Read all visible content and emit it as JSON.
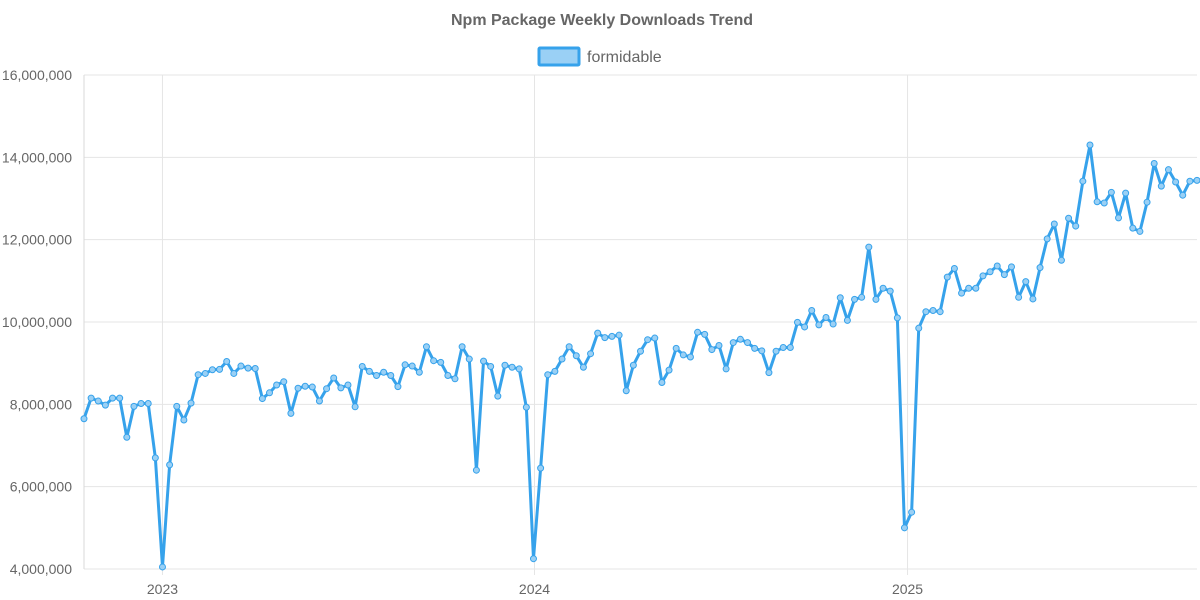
{
  "chart_data": {
    "type": "line",
    "title": "Npm Package Weekly Downloads Trend",
    "xlabel": "",
    "ylabel": "",
    "x_tick_labels": [
      "2023",
      "2024",
      "2025"
    ],
    "x_ticks": [
      "2023-01-01",
      "2024-01-01",
      "2025-01-01"
    ],
    "y_ticks": [
      4000000,
      6000000,
      8000000,
      10000000,
      12000000,
      14000000,
      16000000
    ],
    "y_tick_labels": [
      "4,000,000",
      "6,000,000",
      "8,000,000",
      "10,000,000",
      "12,000,000",
      "14,000,000",
      "16,000,000"
    ],
    "ylim": [
      4000000,
      16000000
    ],
    "xlim": [
      "2022-10-16",
      "2025-09-28"
    ],
    "grid": true,
    "legend_position": "top",
    "series_color": "#36a2eb",
    "series_fill": "#9ad0f5",
    "series": [
      {
        "name": "formidable",
        "points": [
          [
            "2022-10-16",
            7650000
          ],
          [
            "2022-10-23",
            8150000
          ],
          [
            "2022-10-30",
            8080000
          ],
          [
            "2022-11-06",
            7980000
          ],
          [
            "2022-11-13",
            8150000
          ],
          [
            "2022-11-20",
            8150000
          ],
          [
            "2022-11-27",
            7200000
          ],
          [
            "2022-12-04",
            7950000
          ],
          [
            "2022-12-11",
            8020000
          ],
          [
            "2022-12-18",
            8020000
          ],
          [
            "2022-12-25",
            6700000
          ],
          [
            "2023-01-01",
            4050000
          ],
          [
            "2023-01-08",
            6530000
          ],
          [
            "2023-01-15",
            7950000
          ],
          [
            "2023-01-22",
            7620000
          ],
          [
            "2023-01-29",
            8030000
          ],
          [
            "2023-02-05",
            8720000
          ],
          [
            "2023-02-12",
            8750000
          ],
          [
            "2023-02-19",
            8840000
          ],
          [
            "2023-02-26",
            8850000
          ],
          [
            "2023-03-05",
            9040000
          ],
          [
            "2023-03-12",
            8750000
          ],
          [
            "2023-03-19",
            8930000
          ],
          [
            "2023-03-26",
            8880000
          ],
          [
            "2023-04-02",
            8870000
          ],
          [
            "2023-04-09",
            8140000
          ],
          [
            "2023-04-16",
            8280000
          ],
          [
            "2023-04-23",
            8470000
          ],
          [
            "2023-04-30",
            8550000
          ],
          [
            "2023-05-07",
            7780000
          ],
          [
            "2023-05-14",
            8390000
          ],
          [
            "2023-05-21",
            8440000
          ],
          [
            "2023-05-28",
            8420000
          ],
          [
            "2023-06-04",
            8080000
          ],
          [
            "2023-06-11",
            8380000
          ],
          [
            "2023-06-18",
            8640000
          ],
          [
            "2023-06-25",
            8400000
          ],
          [
            "2023-07-02",
            8470000
          ],
          [
            "2023-07-09",
            7940000
          ],
          [
            "2023-07-16",
            8920000
          ],
          [
            "2023-07-23",
            8800000
          ],
          [
            "2023-07-30",
            8700000
          ],
          [
            "2023-08-06",
            8780000
          ],
          [
            "2023-08-13",
            8700000
          ],
          [
            "2023-08-20",
            8430000
          ],
          [
            "2023-08-27",
            8960000
          ],
          [
            "2023-09-03",
            8930000
          ],
          [
            "2023-09-10",
            8780000
          ],
          [
            "2023-09-17",
            9400000
          ],
          [
            "2023-09-24",
            9060000
          ],
          [
            "2023-10-01",
            9020000
          ],
          [
            "2023-10-08",
            8700000
          ],
          [
            "2023-10-15",
            8620000
          ],
          [
            "2023-10-22",
            9400000
          ],
          [
            "2023-10-29",
            9100000
          ],
          [
            "2023-11-05",
            6400000
          ],
          [
            "2023-11-12",
            9050000
          ],
          [
            "2023-11-19",
            8920000
          ],
          [
            "2023-11-26",
            8200000
          ],
          [
            "2023-12-03",
            8950000
          ],
          [
            "2023-12-10",
            8900000
          ],
          [
            "2023-12-17",
            8860000
          ],
          [
            "2023-12-24",
            7930000
          ],
          [
            "2023-12-31",
            4250000
          ],
          [
            "2024-01-07",
            6450000
          ],
          [
            "2024-01-14",
            8720000
          ],
          [
            "2024-01-21",
            8800000
          ],
          [
            "2024-01-28",
            9100000
          ],
          [
            "2024-02-04",
            9400000
          ],
          [
            "2024-02-11",
            9180000
          ],
          [
            "2024-02-18",
            8900000
          ],
          [
            "2024-02-25",
            9230000
          ],
          [
            "2024-03-03",
            9730000
          ],
          [
            "2024-03-10",
            9620000
          ],
          [
            "2024-03-17",
            9650000
          ],
          [
            "2024-03-24",
            9680000
          ],
          [
            "2024-03-31",
            8330000
          ],
          [
            "2024-04-07",
            8950000
          ],
          [
            "2024-04-14",
            9290000
          ],
          [
            "2024-04-21",
            9570000
          ],
          [
            "2024-04-28",
            9610000
          ],
          [
            "2024-05-05",
            8530000
          ],
          [
            "2024-05-12",
            8830000
          ],
          [
            "2024-05-19",
            9360000
          ],
          [
            "2024-05-26",
            9200000
          ],
          [
            "2024-06-02",
            9150000
          ],
          [
            "2024-06-09",
            9750000
          ],
          [
            "2024-06-16",
            9700000
          ],
          [
            "2024-06-23",
            9330000
          ],
          [
            "2024-06-30",
            9430000
          ],
          [
            "2024-07-07",
            8860000
          ],
          [
            "2024-07-14",
            9500000
          ],
          [
            "2024-07-21",
            9580000
          ],
          [
            "2024-07-28",
            9500000
          ],
          [
            "2024-08-04",
            9360000
          ],
          [
            "2024-08-11",
            9300000
          ],
          [
            "2024-08-18",
            8770000
          ],
          [
            "2024-08-25",
            9290000
          ],
          [
            "2024-09-01",
            9380000
          ],
          [
            "2024-09-08",
            9380000
          ],
          [
            "2024-09-15",
            9990000
          ],
          [
            "2024-09-22",
            9880000
          ],
          [
            "2024-09-29",
            10280000
          ],
          [
            "2024-10-06",
            9930000
          ],
          [
            "2024-10-13",
            10110000
          ],
          [
            "2024-10-20",
            9950000
          ],
          [
            "2024-10-27",
            10590000
          ],
          [
            "2024-11-03",
            10040000
          ],
          [
            "2024-11-10",
            10550000
          ],
          [
            "2024-11-17",
            10600000
          ],
          [
            "2024-11-24",
            11820000
          ],
          [
            "2024-12-01",
            10550000
          ],
          [
            "2024-12-08",
            10820000
          ],
          [
            "2024-12-15",
            10750000
          ],
          [
            "2024-12-22",
            10100000
          ],
          [
            "2024-12-29",
            5000000
          ],
          [
            "2025-01-05",
            5380000
          ],
          [
            "2025-01-12",
            9850000
          ],
          [
            "2025-01-19",
            10250000
          ],
          [
            "2025-01-26",
            10280000
          ],
          [
            "2025-02-02",
            10250000
          ],
          [
            "2025-02-09",
            11090000
          ],
          [
            "2025-02-16",
            11300000
          ],
          [
            "2025-02-23",
            10700000
          ],
          [
            "2025-03-02",
            10820000
          ],
          [
            "2025-03-09",
            10820000
          ],
          [
            "2025-03-16",
            11120000
          ],
          [
            "2025-03-23",
            11220000
          ],
          [
            "2025-03-30",
            11360000
          ],
          [
            "2025-04-06",
            11150000
          ],
          [
            "2025-04-13",
            11340000
          ],
          [
            "2025-04-20",
            10600000
          ],
          [
            "2025-04-27",
            10980000
          ],
          [
            "2025-05-04",
            10560000
          ],
          [
            "2025-05-11",
            11320000
          ],
          [
            "2025-05-18",
            12020000
          ],
          [
            "2025-05-25",
            12380000
          ],
          [
            "2025-06-01",
            11500000
          ],
          [
            "2025-06-08",
            12520000
          ],
          [
            "2025-06-15",
            12330000
          ],
          [
            "2025-06-22",
            13420000
          ],
          [
            "2025-06-29",
            14300000
          ],
          [
            "2025-07-06",
            12920000
          ],
          [
            "2025-07-13",
            12890000
          ],
          [
            "2025-07-20",
            13150000
          ],
          [
            "2025-07-27",
            12530000
          ],
          [
            "2025-08-03",
            13130000
          ],
          [
            "2025-08-10",
            12280000
          ],
          [
            "2025-08-17",
            12200000
          ],
          [
            "2025-08-24",
            12910000
          ],
          [
            "2025-08-31",
            13850000
          ],
          [
            "2025-09-07",
            13300000
          ],
          [
            "2025-09-14",
            13700000
          ],
          [
            "2025-09-21",
            13400000
          ],
          [
            "2025-09-28",
            13080000
          ],
          [
            "2025-10-05",
            13420000
          ],
          [
            "2025-10-12",
            13440000
          ]
        ]
      }
    ]
  }
}
